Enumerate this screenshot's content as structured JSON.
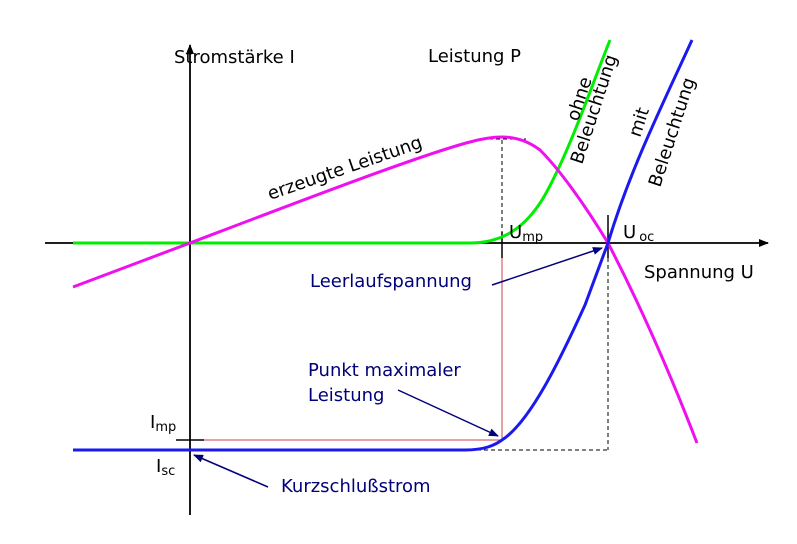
{
  "axes": {
    "y_label": "Stromstärke I",
    "x_label": "Spannung U",
    "power_label": "Leistung P"
  },
  "curves": {
    "dark_line1": "ohne",
    "dark_line2": "Beleuchtung",
    "light_line1": "mit",
    "light_line2": "Beleuchtung",
    "power": "erzeugte Leistung"
  },
  "markers": {
    "u_mp_main": "U",
    "u_mp_sub": "mp",
    "u_oc_main": "U",
    "u_oc_sub": "oc",
    "i_mp_main": "I",
    "i_mp_sub": "mp",
    "i_sc_main": "I",
    "i_sc_sub": "sc"
  },
  "annotations": {
    "open_circuit": "Leerlaufspannung",
    "mpp_line1": "Punkt maximaler",
    "mpp_line2": "Leistung",
    "short_circuit": "Kurzschlußstrom"
  },
  "colors": {
    "axis": "#000000",
    "dark_curve": "#00ee00",
    "light_curve": "#1a1aee",
    "power_curve": "#ee10ee",
    "guide_red": "#d04040",
    "annotation": "#00007a"
  }
}
